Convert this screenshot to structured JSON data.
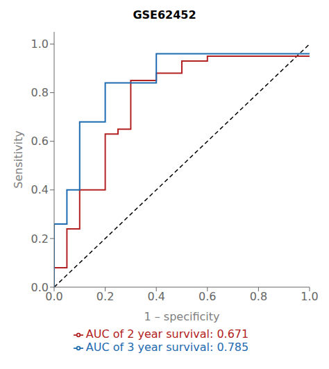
{
  "chart_data": {
    "type": "line",
    "title": "GSE62452",
    "x_label": "1 – specificity",
    "y_label": "Sensitivity",
    "xlim": [
      0.0,
      1.0
    ],
    "ylim": [
      0.0,
      1.05
    ],
    "xticks": [
      {
        "value": 0,
        "label": "0.0"
      },
      0.2,
      0.4,
      0.6,
      0.8,
      {
        "value": 1,
        "label": "1.0"
      }
    ],
    "yticks": [
      {
        "value": 0,
        "label": "0.0"
      },
      0.2,
      0.4,
      0.6,
      0.8,
      {
        "value": 1,
        "label": "1.0"
      }
    ],
    "grid": false,
    "reference_line": {
      "x": [
        0,
        1
      ],
      "values": [
        0,
        1
      ],
      "color": "#000000",
      "line_style": "dashed"
    },
    "series": [
      {
        "name": "AUC of 2 year survival: 0.671",
        "color": "#b22222",
        "x": [
          0.0,
          0.0,
          0.05,
          0.05,
          0.1,
          0.1,
          0.2,
          0.2,
          0.25,
          0.25,
          0.3,
          0.3,
          0.4,
          0.4,
          0.5,
          0.5,
          0.6,
          0.6,
          0.65,
          0.65,
          1.0
        ],
        "values": [
          0.0,
          0.08,
          0.08,
          0.24,
          0.24,
          0.4,
          0.4,
          0.63,
          0.63,
          0.65,
          0.65,
          0.85,
          0.85,
          0.88,
          0.88,
          0.93,
          0.93,
          0.95,
          0.95,
          0.95,
          0.95
        ]
      },
      {
        "name": "AUC of 3 year survival: 0.785",
        "color": "#1e6bb0",
        "x": [
          0.0,
          0.0,
          0.05,
          0.05,
          0.1,
          0.1,
          0.2,
          0.2,
          0.4,
          0.4,
          0.5,
          0.5,
          1.0
        ],
        "values": [
          0.0,
          0.26,
          0.26,
          0.4,
          0.4,
          0.68,
          0.68,
          0.84,
          0.84,
          0.96,
          0.96,
          0.96,
          0.96
        ]
      }
    ]
  }
}
